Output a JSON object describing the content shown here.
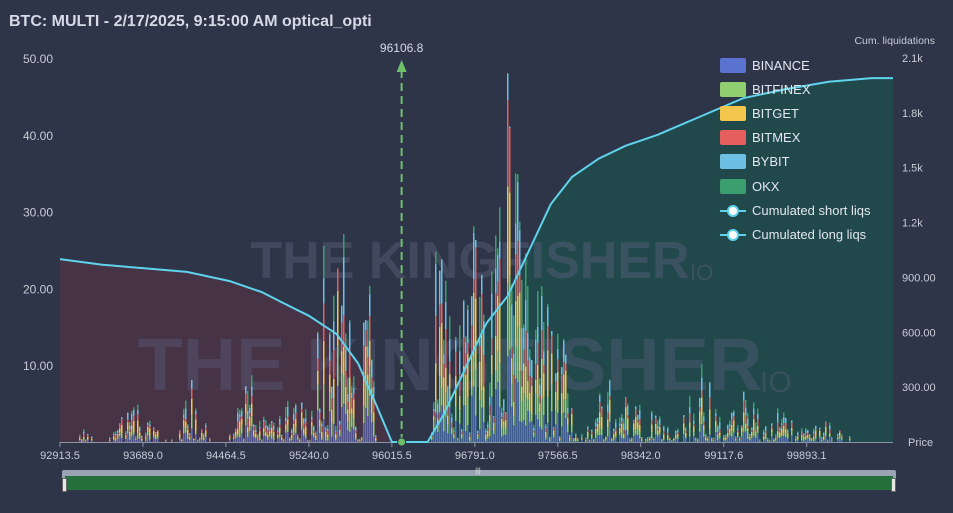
{
  "title": "BTC: MULTI - 2/17/2025, 9:15:00 AM optical_opti",
  "watermark": "THE KINGFISHER",
  "watermark_io": "IO",
  "right_axis_title": "Cum. liquidations",
  "price_axis_label": "Price",
  "marker_label": "96106.8",
  "chart_data": {
    "type": "bar",
    "stacked": true,
    "x_range": [
      92913.5,
      100700
    ],
    "x_ticks": [
      "92913.5",
      "93689.0",
      "94464.5",
      "95240.0",
      "96015.5",
      "96791.0",
      "97566.5",
      "98342.0",
      "99117.6",
      "99893.1"
    ],
    "y_left": {
      "ticks": [
        "10.00",
        "20.00",
        "30.00",
        "40.00",
        "50.00"
      ],
      "range": [
        0,
        50
      ]
    },
    "y_right": {
      "ticks": [
        "300.00",
        "600.00",
        "900.00",
        "1.2k",
        "1.5k",
        "1.8k",
        "2.1k"
      ],
      "range": [
        0,
        2100
      ]
    },
    "marker_price": 96106.8,
    "series": [
      {
        "name": "BINANCE",
        "color": "#5a72d0"
      },
      {
        "name": "BITFINEX",
        "color": "#8fcf6f"
      },
      {
        "name": "BITGET",
        "color": "#f4c74c"
      },
      {
        "name": "BITMEX",
        "color": "#e65e5e"
      },
      {
        "name": "BYBIT",
        "color": "#6ebfe4"
      },
      {
        "name": "OKX",
        "color": "#3b9e6e"
      }
    ],
    "lines": [
      {
        "name": "Cumulated short liqs",
        "color": "#5fd3ec",
        "points": [
          [
            92913.5,
            1000
          ],
          [
            93300,
            970
          ],
          [
            93700,
            950
          ],
          [
            94100,
            930
          ],
          [
            94500,
            880
          ],
          [
            94800,
            820
          ],
          [
            95000,
            760
          ],
          [
            95240,
            690
          ],
          [
            95500,
            590
          ],
          [
            95700,
            430
          ],
          [
            95850,
            230
          ],
          [
            96015.5,
            0
          ]
        ]
      },
      {
        "name": "Cumulated long liqs",
        "color": "#5fd3ec",
        "points": [
          [
            96015.5,
            0
          ],
          [
            96350,
            0
          ],
          [
            96500,
            150
          ],
          [
            96700,
            400
          ],
          [
            96900,
            650
          ],
          [
            97100,
            800
          ],
          [
            97300,
            1050
          ],
          [
            97500,
            1300
          ],
          [
            97700,
            1450
          ],
          [
            97950,
            1550
          ],
          [
            98200,
            1620
          ],
          [
            98500,
            1680
          ],
          [
            98900,
            1780
          ],
          [
            99300,
            1880
          ],
          [
            99700,
            1930
          ],
          [
            100100,
            1970
          ],
          [
            100500,
            1990
          ],
          [
            100700,
            1990
          ]
        ]
      }
    ],
    "clusters": [
      {
        "center": 93150,
        "width": 60,
        "peak": 2.0
      },
      {
        "center": 93620,
        "width": 170,
        "peak": 5.0
      },
      {
        "center": 94150,
        "width": 100,
        "peak": 8.5
      },
      {
        "center": 94680,
        "width": 120,
        "peak": 8.5
      },
      {
        "center": 95050,
        "width": 150,
        "peak": 7.0
      },
      {
        "center": 95400,
        "width": 110,
        "peak": 22.0
      },
      {
        "center": 95580,
        "width": 90,
        "peak": 25.0
      },
      {
        "center": 95780,
        "width": 70,
        "peak": 17.0
      },
      {
        "center": 96500,
        "width": 120,
        "peak": 30.0
      },
      {
        "center": 96760,
        "width": 110,
        "peak": 25.0
      },
      {
        "center": 97050,
        "width": 150,
        "peak": 36.0
      },
      {
        "center": 97300,
        "width": 140,
        "peak": 27.0
      },
      {
        "center": 97560,
        "width": 120,
        "peak": 14.0
      },
      {
        "center": 98050,
        "width": 200,
        "peak": 6.0
      },
      {
        "center": 98400,
        "width": 200,
        "peak": 4.0
      },
      {
        "center": 98900,
        "width": 160,
        "peak": 7.5
      },
      {
        "center": 99300,
        "width": 130,
        "peak": 5.5
      },
      {
        "center": 99600,
        "width": 200,
        "peak": 3.5
      },
      {
        "center": 100100,
        "width": 260,
        "peak": 2.0
      }
    ]
  }
}
